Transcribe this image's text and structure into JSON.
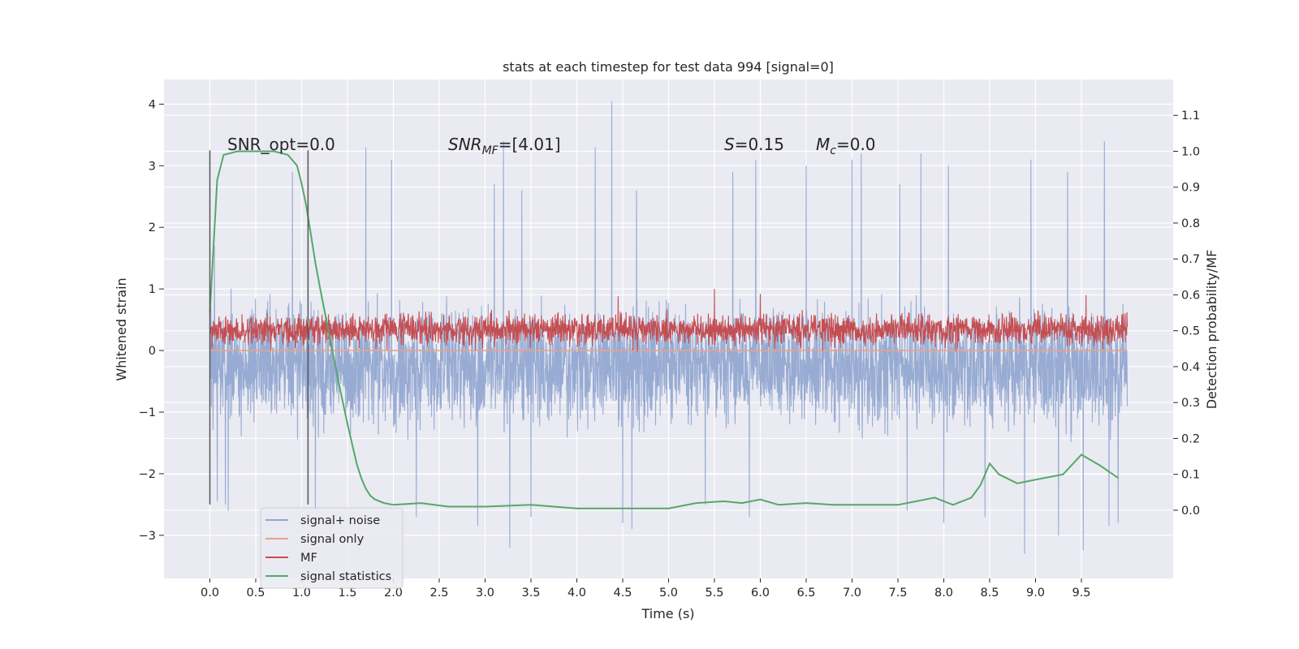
{
  "chart_data": {
    "type": "line",
    "title": "stats at each timestep for test data 994 [signal=0]",
    "xlabel": "Time (s)",
    "ylabel": "Whitened strain",
    "y2label": "Detection probability/MF",
    "xlim": [
      -0.5,
      10.5
    ],
    "ylim": [
      -3.7,
      4.4
    ],
    "y2lim": [
      -0.19,
      1.2
    ],
    "x_ticks": [
      0.0,
      0.5,
      1.0,
      1.5,
      2.0,
      2.5,
      3.0,
      3.5,
      4.0,
      4.5,
      5.0,
      5.5,
      6.0,
      6.5,
      7.0,
      7.5,
      8.0,
      8.5,
      9.0,
      9.5
    ],
    "x_tick_labels": [
      "0.0",
      "0.5",
      "1.0",
      "1.5",
      "2.0",
      "2.5",
      "3.0",
      "3.5",
      "4.0",
      "4.5",
      "5.0",
      "5.5",
      "6.0",
      "6.5",
      "7.0",
      "7.5",
      "8.0",
      "8.5",
      "9.0",
      "9.5"
    ],
    "y_ticks": [
      -3,
      -2,
      -1,
      0,
      1,
      2,
      3,
      4
    ],
    "y_tick_labels": [
      "−3",
      "−2",
      "−1",
      "0",
      "1",
      "2",
      "3",
      "4"
    ],
    "y2_ticks": [
      0.0,
      0.1,
      0.2,
      0.3,
      0.4,
      0.5,
      0.6,
      0.7,
      0.8,
      0.9,
      1.0,
      1.1
    ],
    "y2_tick_labels": [
      "0.0",
      "0.1",
      "0.2",
      "0.3",
      "0.4",
      "0.5",
      "0.6",
      "0.7",
      "0.8",
      "0.9",
      "1.0",
      "1.1"
    ],
    "grid": true,
    "legend_placement": "lower-left",
    "annotations": {
      "snr_opt": "SNR_opt=0.0",
      "snr_mf_base": "SNR",
      "snr_mf_sub": "MF",
      "snr_mf_value": "=[4.01]",
      "s_symbol": "S",
      "s_value": "=0.15",
      "mc_symbol": "M",
      "mc_sub": "c",
      "mc_value": "=0.0"
    },
    "vertical_markers": {
      "x": [
        0.0,
        1.07
      ],
      "y_range": [
        -2.5,
        3.25
      ],
      "color": "#555555"
    },
    "series": [
      {
        "name": "signal+ noise",
        "color": "#92a8d1",
        "axis": "left",
        "x_range": [
          0.0,
          10.0
        ],
        "typical_range": [
          -1.4,
          0.9
        ],
        "extremes": [
          {
            "x": 0.05,
            "y": 1.7
          },
          {
            "x": 0.08,
            "y": -2.45
          },
          {
            "x": 0.17,
            "y": -2.5
          },
          {
            "x": 0.2,
            "y": -2.6
          },
          {
            "x": 0.9,
            "y": 2.9
          },
          {
            "x": 1.15,
            "y": -2.6
          },
          {
            "x": 1.7,
            "y": 3.3
          },
          {
            "x": 1.98,
            "y": 3.1
          },
          {
            "x": 2.25,
            "y": -2.7
          },
          {
            "x": 2.92,
            "y": -2.85
          },
          {
            "x": 3.1,
            "y": 2.7
          },
          {
            "x": 3.2,
            "y": 3.4
          },
          {
            "x": 3.27,
            "y": -3.2
          },
          {
            "x": 3.4,
            "y": 2.6
          },
          {
            "x": 3.5,
            "y": -2.7
          },
          {
            "x": 4.2,
            "y": 3.3
          },
          {
            "x": 4.38,
            "y": 4.05
          },
          {
            "x": 4.5,
            "y": -2.8
          },
          {
            "x": 4.6,
            "y": -2.9
          },
          {
            "x": 4.65,
            "y": 2.6
          },
          {
            "x": 5.4,
            "y": -2.5
          },
          {
            "x": 5.7,
            "y": 2.9
          },
          {
            "x": 5.88,
            "y": -2.7
          },
          {
            "x": 5.95,
            "y": 3.1
          },
          {
            "x": 6.5,
            "y": 3.0
          },
          {
            "x": 7.0,
            "y": 3.1
          },
          {
            "x": 7.1,
            "y": 3.2
          },
          {
            "x": 7.52,
            "y": 2.7
          },
          {
            "x": 7.6,
            "y": -2.6
          },
          {
            "x": 7.75,
            "y": 3.2
          },
          {
            "x": 8.0,
            "y": -2.8
          },
          {
            "x": 8.05,
            "y": 3.0
          },
          {
            "x": 8.45,
            "y": -2.7
          },
          {
            "x": 8.88,
            "y": -3.3
          },
          {
            "x": 8.95,
            "y": 3.1
          },
          {
            "x": 9.25,
            "y": -3.0
          },
          {
            "x": 9.35,
            "y": 2.9
          },
          {
            "x": 9.52,
            "y": -3.25
          },
          {
            "x": 9.75,
            "y": 3.4
          },
          {
            "x": 9.8,
            "y": -2.85
          },
          {
            "x": 9.9,
            "y": -2.8
          }
        ]
      },
      {
        "name": "signal only",
        "color": "#e8a38a",
        "axis": "left",
        "x": [
          0.0,
          10.0
        ],
        "y": [
          0.0,
          0.0
        ]
      },
      {
        "name": "MF",
        "color": "#c44e52",
        "axis": "left",
        "x_range": [
          0.0,
          10.0
        ],
        "typical_range": [
          0.02,
          0.65
        ],
        "extremes": [
          {
            "x": 5.5,
            "y": 1.0
          },
          {
            "x": 6.0,
            "y": 0.92
          },
          {
            "x": 4.45,
            "y": 0.88
          },
          {
            "x": 9.55,
            "y": 0.9
          }
        ]
      },
      {
        "name": "signal statistics",
        "color": "#55a868",
        "axis": "right",
        "x": [
          0.0,
          0.08,
          0.15,
          0.3,
          0.5,
          0.7,
          0.85,
          0.95,
          1.0,
          1.05,
          1.1,
          1.15,
          1.2,
          1.3,
          1.4,
          1.5,
          1.6,
          1.65,
          1.7,
          1.75,
          1.8,
          1.9,
          2.0,
          2.3,
          2.6,
          3.0,
          3.5,
          4.0,
          4.5,
          5.0,
          5.3,
          5.6,
          5.8,
          6.0,
          6.2,
          6.5,
          6.8,
          7.0,
          7.5,
          7.7,
          7.9,
          8.1,
          8.3,
          8.4,
          8.5,
          8.6,
          8.8,
          9.0,
          9.3,
          9.5,
          9.7,
          9.9
        ],
        "y": [
          0.55,
          0.92,
          0.99,
          1.0,
          1.0,
          1.0,
          0.99,
          0.96,
          0.91,
          0.85,
          0.77,
          0.69,
          0.62,
          0.49,
          0.36,
          0.24,
          0.13,
          0.09,
          0.06,
          0.04,
          0.03,
          0.02,
          0.015,
          0.02,
          0.01,
          0.01,
          0.015,
          0.005,
          0.005,
          0.005,
          0.02,
          0.025,
          0.02,
          0.03,
          0.015,
          0.02,
          0.015,
          0.015,
          0.015,
          0.025,
          0.035,
          0.015,
          0.035,
          0.07,
          0.13,
          0.1,
          0.075,
          0.085,
          0.1,
          0.155,
          0.125,
          0.09
        ]
      }
    ]
  }
}
